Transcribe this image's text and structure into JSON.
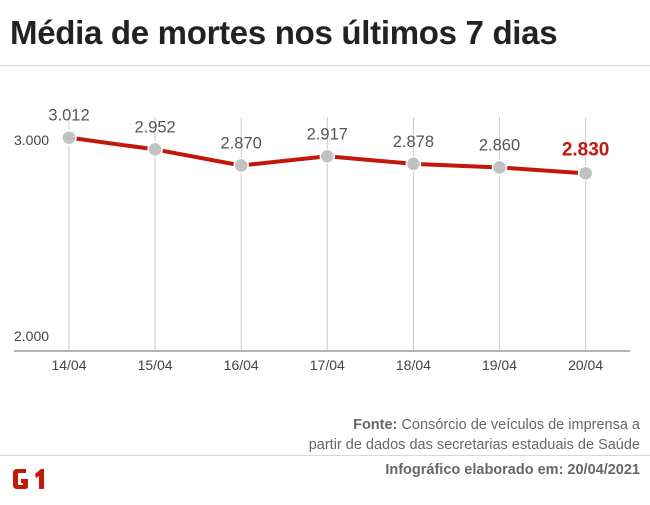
{
  "header": {
    "title": "Média de mortes nos últimos 7 dias"
  },
  "footer": {
    "source_label": "Fonte:",
    "source_line1": "Consórcio de veículos de imprensa a",
    "source_line2": "partir de dados das secretarias estaduais de Saúde",
    "credit": "Infográfico elaborado em: 20/04/2021",
    "logo_text": "G1"
  },
  "colors": {
    "line": "#c4170c",
    "marker": "#c2c2c2",
    "highlight_label": "#c4170c",
    "label": "#555555",
    "grid": "#cccccc",
    "axis": "#888888",
    "logo": "#c4170c"
  },
  "chart_data": {
    "type": "line",
    "title": "Média de mortes nos últimos 7 dias",
    "categories": [
      "14/04",
      "15/04",
      "16/04",
      "17/04",
      "18/04",
      "19/04",
      "20/04"
    ],
    "values": [
      3012,
      2952,
      2870,
      2917,
      2878,
      2860,
      2830
    ],
    "value_labels": [
      "3.012",
      "2.952",
      "2.870",
      "2.917",
      "2.878",
      "2.860",
      "2.830"
    ],
    "highlight_index": 6,
    "yticks": [
      2000,
      3000
    ],
    "ytick_labels": [
      "2.000",
      "3.000"
    ],
    "ylim": [
      2000,
      3000
    ],
    "grid": "vertical",
    "xlabel": "",
    "ylabel": ""
  }
}
